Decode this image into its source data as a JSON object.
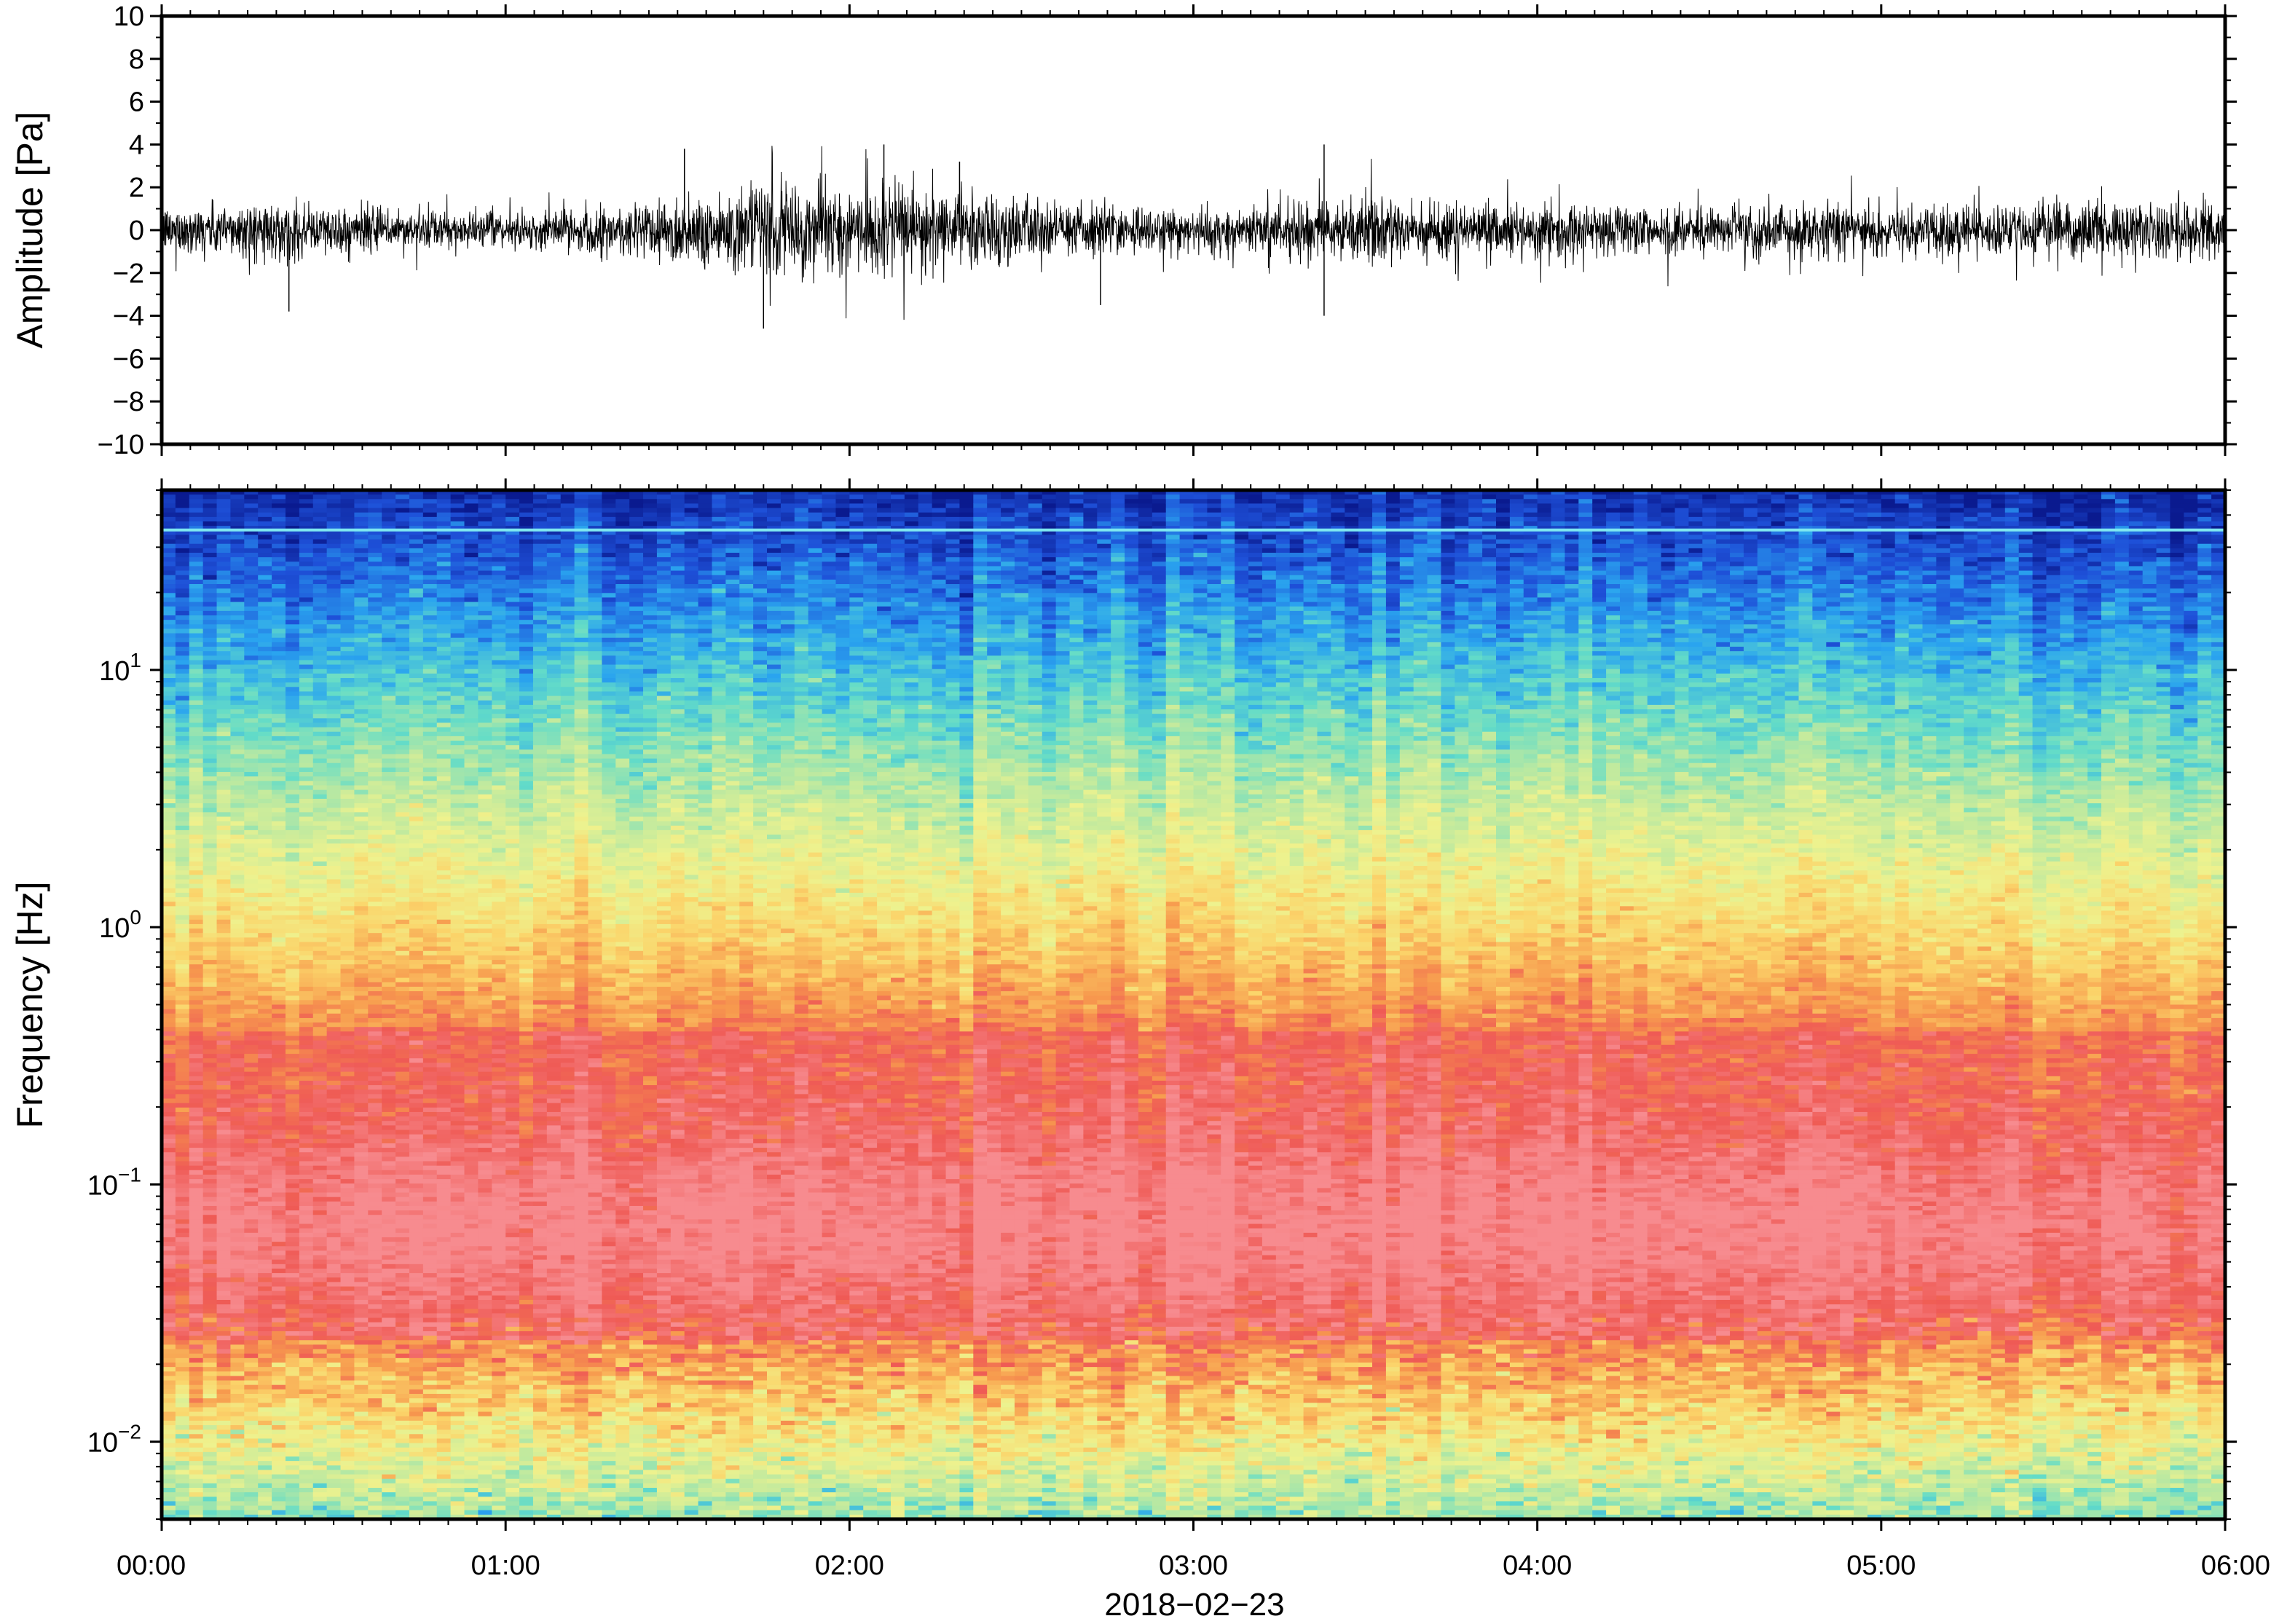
{
  "chart_data": [
    {
      "type": "line",
      "ylabel": "Amplitude [Pa]",
      "ylim": [
        -10,
        10
      ],
      "yticks": [
        "10",
        "8",
        "6",
        "4",
        "2",
        "0",
        "−2",
        "−4",
        "−6",
        "−8",
        "−10"
      ],
      "ytick_values": [
        10,
        8,
        6,
        4,
        2,
        0,
        -2,
        -4,
        -6,
        -8,
        -10
      ],
      "xlim": [
        "2018-02-23 00:00",
        "2018-02-23 06:00"
      ],
      "series": [
        {
          "color": "#000000",
          "envelope_x_hours": [
            0,
            0.25,
            0.5,
            0.75,
            1.0,
            1.25,
            1.5,
            1.75,
            2.0,
            2.25,
            2.5,
            2.75,
            3.0,
            3.25,
            3.5,
            3.75,
            4.0,
            4.25,
            4.5,
            4.75,
            5.0,
            5.25,
            5.5,
            5.75,
            6.0
          ],
          "envelope_amplitude_pa": [
            1.0,
            1.3,
            1.1,
            0.9,
            0.7,
            1.0,
            1.6,
            2.0,
            2.0,
            1.9,
            1.4,
            1.1,
            1.0,
            1.2,
            1.4,
            1.3,
            1.2,
            1.1,
            1.1,
            1.2,
            1.2,
            1.1,
            1.2,
            1.3,
            1.4
          ],
          "peaks": [
            {
              "x_hours": 1.52,
              "y": 3.8
            },
            {
              "x_hours": 1.75,
              "y": -4.6
            },
            {
              "x_hours": 2.1,
              "y": 4.0
            },
            {
              "x_hours": 2.32,
              "y": 3.2
            },
            {
              "x_hours": 3.38,
              "y": 4.0
            },
            {
              "x_hours": 3.38,
              "y": -4.0
            },
            {
              "x_hours": 0.37,
              "y": -3.8
            },
            {
              "x_hours": 2.73,
              "y": -3.5
            }
          ]
        }
      ]
    },
    {
      "type": "heatmap",
      "ylabel": "Frequency [Hz]",
      "yscale": "log",
      "ylim": [
        0.005,
        50
      ],
      "ytick_labels": [
        {
          "base": "10",
          "exp": "1",
          "value": 10
        },
        {
          "base": "10",
          "exp": "0",
          "value": 1
        },
        {
          "base": "10",
          "exp": "−1",
          "value": 0.1
        },
        {
          "base": "10",
          "exp": "−2",
          "value": 0.01
        }
      ],
      "xlabel": "2018−02−23",
      "xticks": [
        "00:00",
        "01:00",
        "02:00",
        "03:00",
        "04:00",
        "05:00",
        "06:00"
      ],
      "xtick_hours": [
        0,
        1,
        2,
        3,
        4,
        5,
        6
      ],
      "colormap": "spectral (blue = low power, red = high power)",
      "colormap_stops": [
        "#0a1a8f",
        "#1e50d8",
        "#2aa4ef",
        "#63dcc8",
        "#bde9a0",
        "#eef28e",
        "#fbd46a",
        "#f79a4e",
        "#ef5a55",
        "#f78b8f"
      ],
      "dominant_power_band_hz": [
        0.02,
        0.4
      ],
      "persistent_line_hz": 35
    }
  ]
}
